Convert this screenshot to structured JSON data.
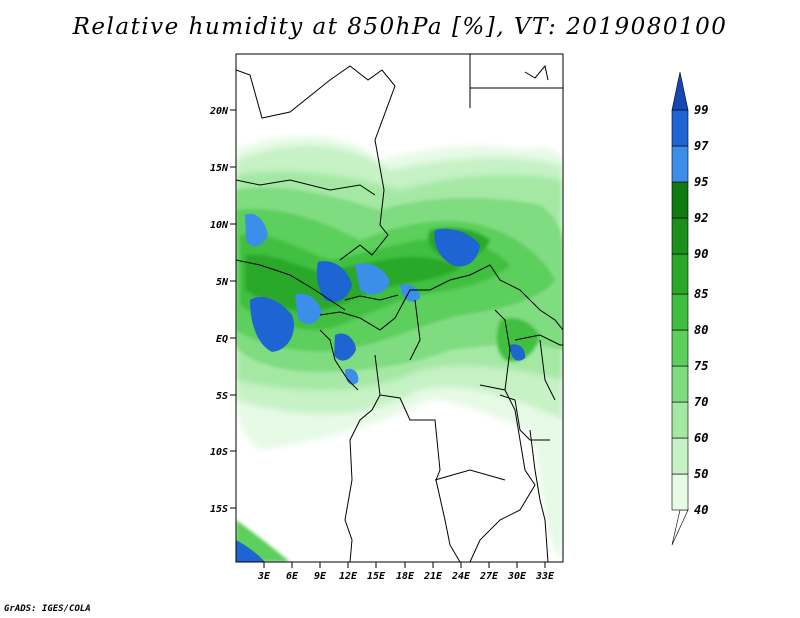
{
  "title": "Relative humidity at 850hPa [%], VT: 2019080100",
  "credit": "GrADS: IGES/COLA",
  "axes": {
    "lat_ticks": [
      "20N",
      "15N",
      "10N",
      "5N",
      "EQ",
      "5S",
      "10S",
      "15S"
    ],
    "lon_ticks": [
      "3E",
      "6E",
      "9E",
      "12E",
      "15E",
      "18E",
      "21E",
      "24E",
      "27E",
      "30E",
      "33E"
    ]
  },
  "colorbar": {
    "levels": [
      "40",
      "50",
      "60",
      "70",
      "75",
      "80",
      "85",
      "90",
      "92",
      "95",
      "97",
      "99"
    ],
    "colors": [
      "#ffffff",
      "#e6fae6",
      "#c6f2c6",
      "#a4e8a4",
      "#80dc80",
      "#5ccf5c",
      "#3fbf3f",
      "#29a829",
      "#1a8f1a",
      "#0f7a0f",
      "#3c8ee8",
      "#1e64d2",
      "#1446b4"
    ]
  },
  "field": {
    "variable": "Relative humidity",
    "level": "850hPa",
    "units": "%",
    "valid_time": "2019080100"
  }
}
